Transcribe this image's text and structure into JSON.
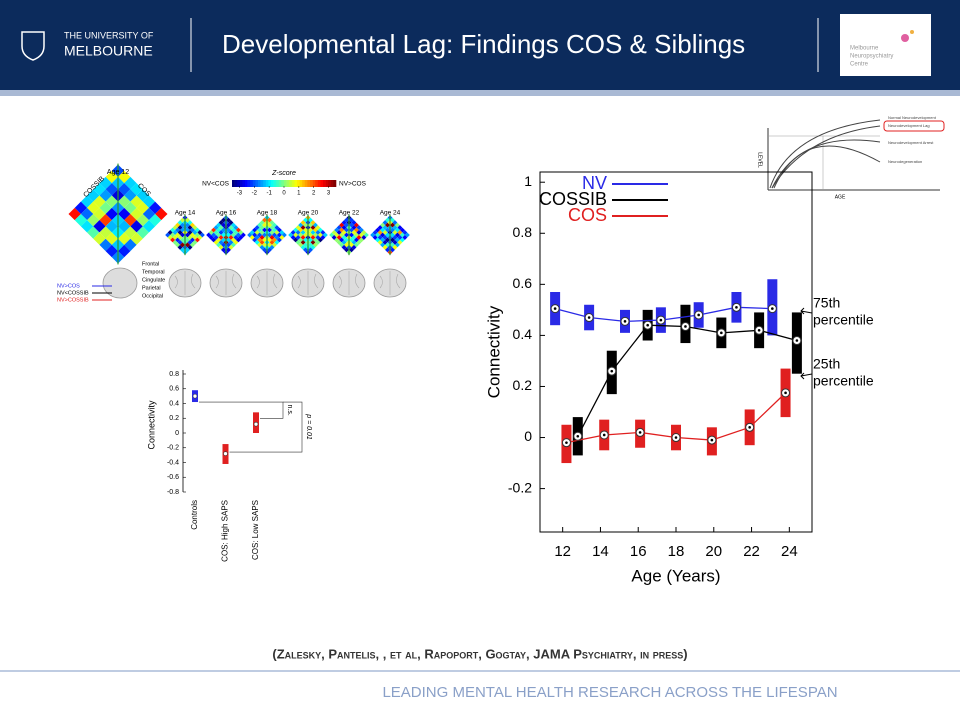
{
  "header": {
    "university": [
      "THE UNIVERSITY OF",
      "MELBOURNE"
    ],
    "title": "Developmental Lag: Findings COS & Siblings",
    "logo": [
      "Melbourne",
      "Neuropsychiatry",
      "Centre"
    ]
  },
  "figure_top": {
    "age_main": "Age 12",
    "diamond_left": "COSSIB",
    "diamond_right": "COS",
    "colorbar_title": "Z-score",
    "colorbar_low": "NV<COS",
    "colorbar_high": "NV>COS",
    "colorbar_lim": [
      -3.5,
      3.5
    ],
    "colorbar_ticks": [
      -3,
      -2,
      -1,
      0,
      1,
      2,
      3
    ],
    "ages": [
      "Age 14",
      "Age 16",
      "Age 18",
      "Age 20",
      "Age 22",
      "Age 24"
    ],
    "regions": [
      "Frontal",
      "Temporal",
      "Cingulate",
      "Parietal",
      "Occipital"
    ],
    "legend": [
      {
        "name": "NV>COS",
        "color": "#2a2ae6"
      },
      {
        "name": "NV<COSSIB",
        "color": "#000000"
      },
      {
        "name": "NV>COSSIB",
        "color": "#e02020"
      }
    ]
  },
  "inset": {
    "y_label": "LEVEL",
    "x_label": "AGE",
    "curves": [
      "Normal Neurodevelopment",
      "Neurodevelopment Lag",
      "Neurodevelopment Arrest",
      "Neurodegeneration"
    ]
  },
  "chart_data": [
    {
      "type": "box",
      "x_label": "Age (Years)",
      "y_label": "Connectivity",
      "xlim": [
        10.8,
        25.2
      ],
      "xticks": [
        12,
        14,
        16,
        18,
        20,
        22,
        24
      ],
      "ylim": [
        -0.37,
        1.04
      ],
      "yticks": [
        -0.2,
        0,
        0.2,
        0.4,
        0.6,
        0.8,
        1
      ],
      "legend": "upper left",
      "annotations": [
        [
          "75th",
          "percentile"
        ],
        [
          "25th",
          "percentile"
        ]
      ],
      "series": [
        {
          "name": "NV",
          "color": "#2a2ae6",
          "x": [
            11.6,
            13.4,
            15.3,
            17.2,
            19.2,
            21.2,
            23.1
          ],
          "values": [
            0.505,
            0.47,
            0.455,
            0.46,
            0.48,
            0.51,
            0.505
          ],
          "q1": [
            0.44,
            0.42,
            0.41,
            0.41,
            0.43,
            0.45,
            0.4
          ],
          "q3": [
            0.57,
            0.52,
            0.5,
            0.51,
            0.53,
            0.57,
            0.62
          ]
        },
        {
          "name": "COSSIB",
          "color": "#000000",
          "x": [
            12.8,
            14.6,
            16.5,
            18.5,
            20.4,
            22.4,
            24.4
          ],
          "values": [
            0.005,
            0.26,
            0.44,
            0.435,
            0.41,
            0.42,
            0.38
          ],
          "q1": [
            -0.07,
            0.17,
            0.38,
            0.37,
            0.35,
            0.35,
            0.25
          ],
          "q3": [
            0.08,
            0.34,
            0.5,
            0.52,
            0.47,
            0.49,
            0.49
          ]
        },
        {
          "name": "COS",
          "color": "#e02020",
          "x": [
            12.2,
            14.2,
            16.1,
            18.0,
            19.9,
            21.9,
            23.8
          ],
          "values": [
            -0.02,
            0.01,
            0.02,
            0.0,
            -0.01,
            0.04,
            0.175
          ],
          "q1": [
            -0.1,
            -0.05,
            -0.04,
            -0.05,
            -0.07,
            -0.03,
            0.08
          ],
          "q3": [
            0.05,
            0.07,
            0.07,
            0.05,
            0.04,
            0.11,
            0.27
          ]
        }
      ]
    },
    {
      "type": "box",
      "y_label": "Connectivity",
      "categories": [
        "Controls",
        "COS: High SAPS",
        "COS: Low SAPS"
      ],
      "colors": [
        "#2a2ae6",
        "#e02020",
        "#e02020"
      ],
      "values": [
        0.5,
        -0.28,
        0.12
      ],
      "q1": [
        0.42,
        -0.42,
        0.0
      ],
      "q3": [
        0.58,
        -0.15,
        0.28
      ],
      "ylim": [
        -0.8,
        0.8
      ],
      "yticks": [
        -0.8,
        -0.6,
        -0.4,
        -0.2,
        0,
        0.2,
        0.4,
        0.6,
        0.8
      ],
      "annotations": [
        "n.s.",
        "p = 0.01"
      ]
    }
  ],
  "citation": "(Zalesky, Pantelis, , et al, Rapoport, Gogtay, JAMA Psychiatry, in press)",
  "footer": "LEADING MENTAL HEALTH RESEARCH ACROSS THE LIFESPAN"
}
